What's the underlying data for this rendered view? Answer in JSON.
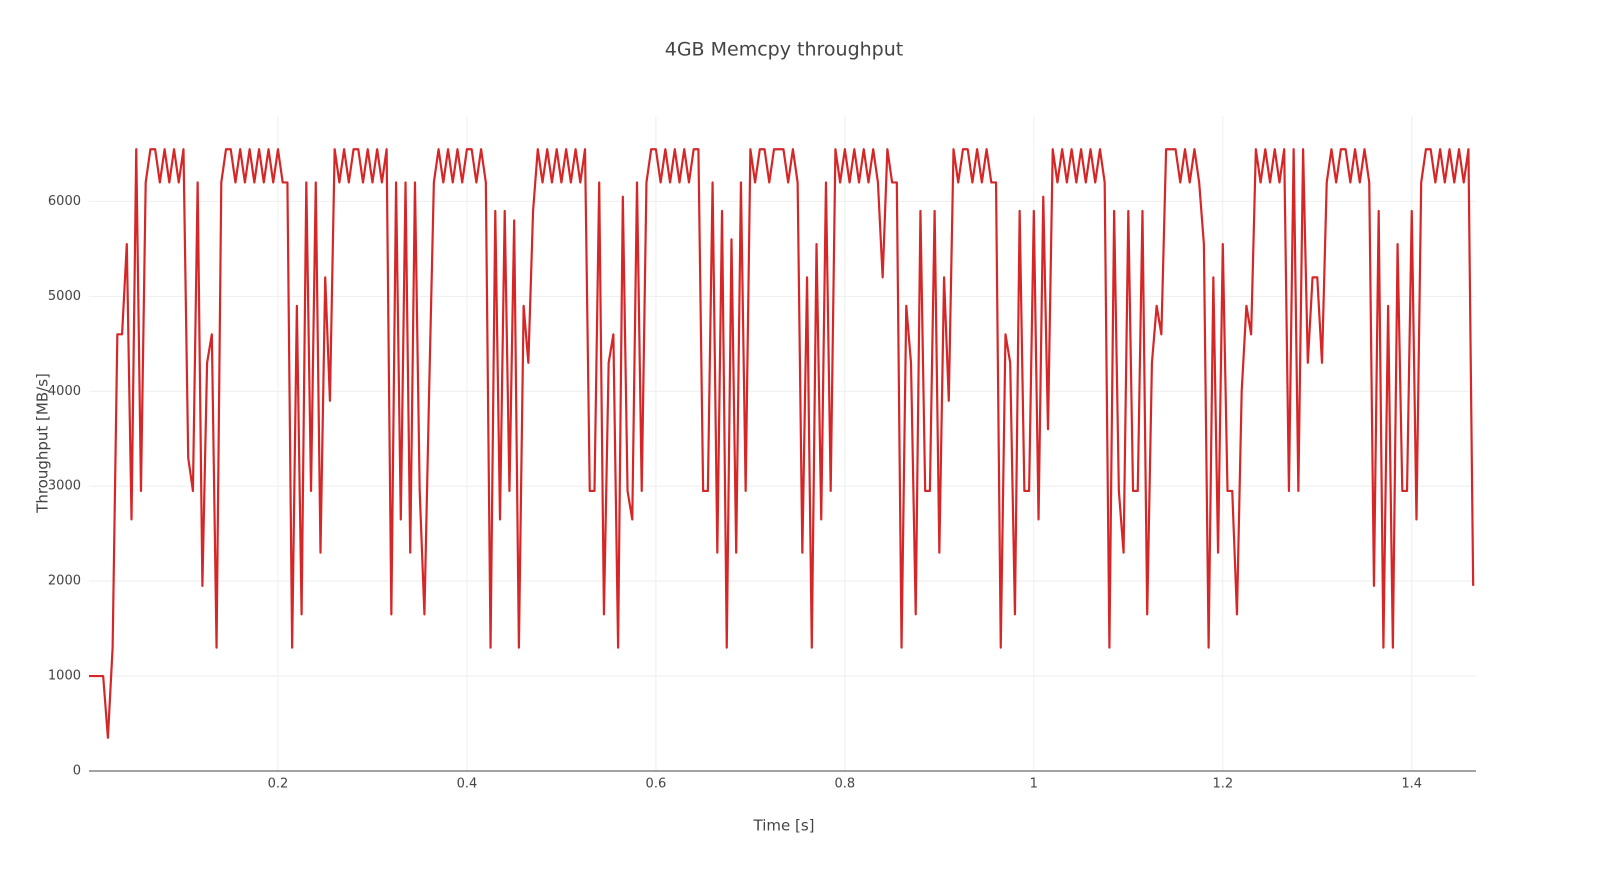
{
  "chart_data": {
    "type": "line",
    "title": "4GB Memcpy throughput",
    "xlabel": "Time [s]",
    "ylabel": "Throughput [MB/s]",
    "color": "#d62728",
    "grid": true,
    "xlim": [
      0,
      1.468
    ],
    "ylim": [
      0,
      6900
    ],
    "xticks": [
      0.2,
      0.4,
      0.6,
      0.8,
      1,
      1.2,
      1.4
    ],
    "yticks": [
      0,
      1000,
      2000,
      3000,
      4000,
      5000,
      6000
    ],
    "x": [
      0,
      0.005,
      0.01,
      0.015,
      0.02,
      0.025,
      0.03,
      0.035,
      0.04,
      0.045,
      0.05,
      0.055,
      0.06,
      0.065,
      0.07,
      0.075,
      0.08,
      0.085,
      0.09,
      0.095,
      0.1,
      0.105,
      0.11,
      0.115,
      0.12,
      0.125,
      0.13,
      0.135,
      0.14,
      0.145,
      0.15,
      0.155,
      0.16,
      0.165,
      0.17,
      0.175,
      0.18,
      0.185,
      0.19,
      0.195,
      0.2,
      0.205,
      0.21,
      0.215,
      0.22,
      0.225,
      0.23,
      0.235,
      0.24,
      0.245,
      0.25,
      0.255,
      0.26,
      0.265,
      0.27,
      0.275,
      0.28,
      0.285,
      0.29,
      0.295,
      0.3,
      0.305,
      0.31,
      0.315,
      0.32,
      0.325,
      0.33,
      0.335,
      0.34,
      0.345,
      0.35,
      0.355,
      0.36,
      0.365,
      0.37,
      0.375,
      0.38,
      0.385,
      0.39,
      0.395,
      0.4,
      0.405,
      0.41,
      0.415,
      0.42,
      0.425,
      0.43,
      0.435,
      0.44,
      0.445,
      0.45,
      0.455,
      0.46,
      0.465,
      0.47,
      0.475,
      0.48,
      0.485,
      0.49,
      0.495,
      0.5,
      0.505,
      0.51,
      0.515,
      0.52,
      0.525,
      0.53,
      0.535,
      0.54,
      0.545,
      0.55,
      0.555,
      0.56,
      0.565,
      0.57,
      0.575,
      0.58,
      0.585,
      0.59,
      0.595,
      0.6,
      0.605,
      0.61,
      0.615,
      0.62,
      0.625,
      0.63,
      0.635,
      0.64,
      0.645,
      0.65,
      0.655,
      0.66,
      0.665,
      0.67,
      0.675,
      0.68,
      0.685,
      0.69,
      0.695,
      0.7,
      0.705,
      0.71,
      0.715,
      0.72,
      0.725,
      0.73,
      0.735,
      0.74,
      0.745,
      0.75,
      0.755,
      0.76,
      0.765,
      0.77,
      0.775,
      0.78,
      0.785,
      0.79,
      0.795,
      0.8,
      0.805,
      0.81,
      0.815,
      0.82,
      0.825,
      0.83,
      0.835,
      0.84,
      0.845,
      0.85,
      0.855,
      0.86,
      0.865,
      0.87,
      0.875,
      0.88,
      0.885,
      0.89,
      0.895,
      0.9,
      0.905,
      0.91,
      0.915,
      0.92,
      0.925,
      0.93,
      0.935,
      0.94,
      0.945,
      0.95,
      0.955,
      0.96,
      0.965,
      0.97,
      0.975,
      0.98,
      0.985,
      0.99,
      0.995,
      1,
      1.005,
      1.01,
      1.015,
      1.02,
      1.025,
      1.03,
      1.035,
      1.04,
      1.045,
      1.05,
      1.055,
      1.06,
      1.065,
      1.07,
      1.075,
      1.08,
      1.085,
      1.09,
      1.095,
      1.1,
      1.105,
      1.11,
      1.115,
      1.12,
      1.125,
      1.13,
      1.135,
      1.14,
      1.145,
      1.15,
      1.155,
      1.16,
      1.165,
      1.17,
      1.175,
      1.18,
      1.185,
      1.19,
      1.195,
      1.2,
      1.205,
      1.21,
      1.215,
      1.22,
      1.225,
      1.23,
      1.235,
      1.24,
      1.245,
      1.25,
      1.255,
      1.26,
      1.265,
      1.27,
      1.275,
      1.28,
      1.285,
      1.29,
      1.295,
      1.3,
      1.305,
      1.31,
      1.315,
      1.32,
      1.325,
      1.33,
      1.335,
      1.34,
      1.345,
      1.35,
      1.355,
      1.36,
      1.365,
      1.37,
      1.375,
      1.38,
      1.385,
      1.39,
      1.395,
      1.4,
      1.405,
      1.41,
      1.415,
      1.42,
      1.425,
      1.43,
      1.435,
      1.44,
      1.445,
      1.45,
      1.455,
      1.46,
      1.465
    ],
    "values": [
      1000,
      1000,
      1000,
      1000,
      350,
      1300,
      4600,
      4600,
      5550,
      2650,
      6550,
      2950,
      6200,
      6550,
      6550,
      6200,
      6550,
      6200,
      6550,
      6200,
      6550,
      3300,
      2950,
      6200,
      1950,
      4300,
      4600,
      1300,
      6200,
      6550,
      6550,
      6200,
      6550,
      6200,
      6550,
      6200,
      6550,
      6200,
      6550,
      6200,
      6550,
      6200,
      6200,
      1300,
      4900,
      1650,
      6200,
      2950,
      6200,
      2300,
      5200,
      3900,
      6550,
      6200,
      6550,
      6200,
      6550,
      6550,
      6200,
      6550,
      6200,
      6550,
      6200,
      6550,
      1650,
      6200,
      2650,
      6200,
      2300,
      6200,
      2950,
      1650,
      4000,
      6200,
      6550,
      6200,
      6550,
      6200,
      6550,
      6200,
      6550,
      6550,
      6200,
      6550,
      6200,
      1300,
      5900,
      2650,
      5900,
      2950,
      5800,
      1300,
      4900,
      4300,
      5900,
      6550,
      6200,
      6550,
      6200,
      6550,
      6200,
      6550,
      6200,
      6550,
      6200,
      6550,
      2950,
      2950,
      6200,
      1650,
      4300,
      4600,
      1300,
      6050,
      2950,
      2650,
      6200,
      2950,
      6200,
      6550,
      6550,
      6200,
      6550,
      6200,
      6550,
      6200,
      6550,
      6200,
      6550,
      6550,
      2950,
      2950,
      6200,
      2300,
      5900,
      1300,
      5600,
      2300,
      6200,
      2950,
      6550,
      6200,
      6550,
      6550,
      6200,
      6550,
      6550,
      6550,
      6200,
      6550,
      6200,
      2300,
      5200,
      1300,
      5550,
      2650,
      6200,
      2950,
      6550,
      6200,
      6550,
      6200,
      6550,
      6200,
      6550,
      6200,
      6550,
      6200,
      5200,
      6550,
      6200,
      6200,
      1300,
      4900,
      4300,
      1650,
      5900,
      2950,
      2950,
      5900,
      2300,
      5200,
      3900,
      6550,
      6200,
      6550,
      6550,
      6200,
      6550,
      6200,
      6550,
      6200,
      6200,
      1300,
      4600,
      4300,
      1650,
      5900,
      2950,
      2950,
      5900,
      2650,
      6050,
      3600,
      6550,
      6200,
      6550,
      6200,
      6550,
      6200,
      6550,
      6200,
      6550,
      6200,
      6550,
      6200,
      1300,
      5900,
      2950,
      2300,
      5900,
      2950,
      2950,
      5900,
      1650,
      4300,
      4900,
      4600,
      6550,
      6550,
      6550,
      6200,
      6550,
      6200,
      6550,
      6200,
      5550,
      1300,
      5200,
      2300,
      5550,
      2950,
      2950,
      1650,
      4000,
      4900,
      4600,
      6550,
      6200,
      6550,
      6200,
      6550,
      6200,
      6550,
      2950,
      6550,
      2950,
      6550,
      4300,
      5200,
      5200,
      4300,
      6200,
      6550,
      6200,
      6550,
      6550,
      6200,
      6550,
      6200,
      6550,
      6200,
      1950,
      5900,
      1300,
      4900,
      1300,
      5550,
      2950,
      2950,
      5900,
      2650,
      6200,
      6550,
      6550,
      6200,
      6550,
      6200,
      6550,
      6200,
      6550,
      6200,
      6550,
      1950
    ]
  }
}
